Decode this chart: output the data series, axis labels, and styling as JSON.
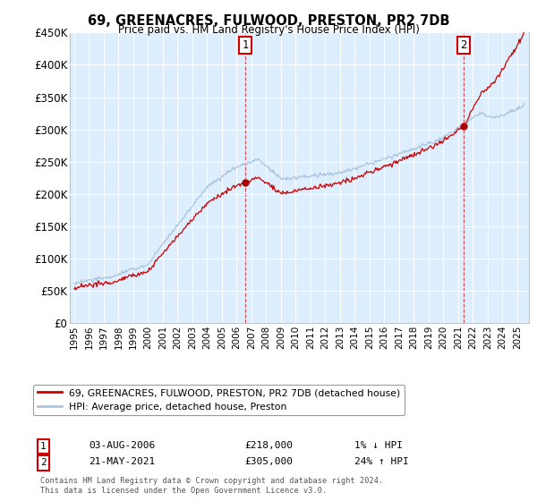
{
  "title": "69, GREENACRES, FULWOOD, PRESTON, PR2 7DB",
  "subtitle": "Price paid vs. HM Land Registry's House Price Index (HPI)",
  "ylim": [
    0,
    450000
  ],
  "yticks": [
    0,
    50000,
    100000,
    150000,
    200000,
    250000,
    300000,
    350000,
    400000,
    450000
  ],
  "ytick_labels": [
    "£0",
    "£50K",
    "£100K",
    "£150K",
    "£200K",
    "£250K",
    "£300K",
    "£350K",
    "£400K",
    "£450K"
  ],
  "hpi_color": "#aac4e0",
  "price_color": "#cc0000",
  "marker_color": "#aa0000",
  "background_color": "#ffffff",
  "chart_bg_color": "#ddeeff",
  "grid_color": "#ffffff",
  "legend_label_price": "69, GREENACRES, FULWOOD, PRESTON, PR2 7DB (detached house)",
  "legend_label_hpi": "HPI: Average price, detached house, Preston",
  "annotation1_date": "03-AUG-2006",
  "annotation1_price": "£218,000",
  "annotation1_info": "1% ↓ HPI",
  "annotation2_date": "21-MAY-2021",
  "annotation2_price": "£305,000",
  "annotation2_info": "24% ↑ HPI",
  "footnote": "Contains HM Land Registry data © Crown copyright and database right 2024.\nThis data is licensed under the Open Government Licence v3.0.",
  "sale1_year": 2006.58,
  "sale1_price": 218000,
  "sale2_year": 2021.38,
  "sale2_price": 305000,
  "xlim_left": 1994.7,
  "xlim_right": 2025.8
}
